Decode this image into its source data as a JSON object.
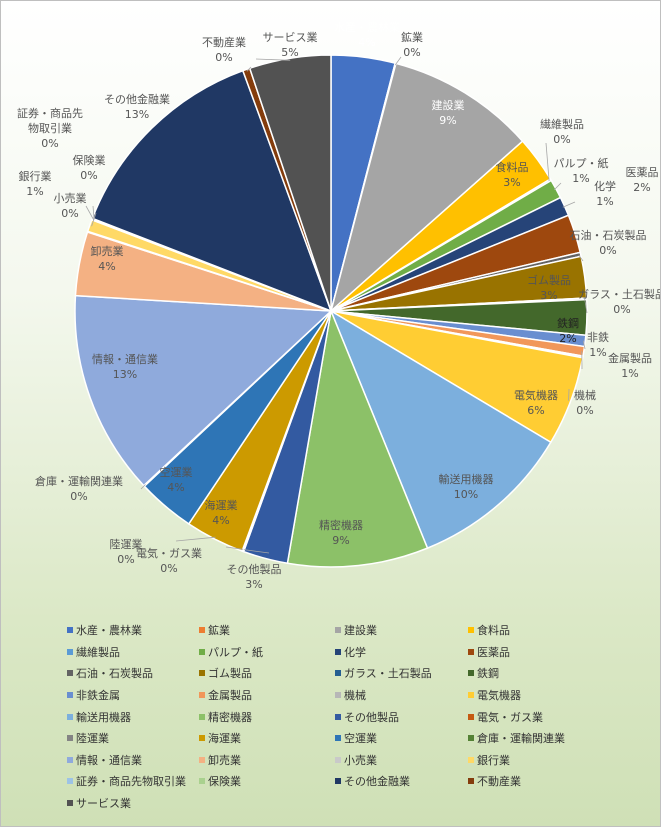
{
  "chart_data": {
    "type": "pie",
    "series": [
      {
        "name": "水産・農林業",
        "label": "水産・農林業",
        "value_label": "4%",
        "value": 4.0,
        "color": "#4472c4"
      },
      {
        "name": "鉱業",
        "label": "鉱業",
        "value_label": "0%",
        "value": 0.05,
        "color": "#ed7d31"
      },
      {
        "name": "建設業",
        "label": "建設業",
        "value_label": "9%",
        "value": 9.3,
        "color": "#a5a5a5"
      },
      {
        "name": "食料品",
        "label": "食料品",
        "value_label": "3%",
        "value": 2.9,
        "color": "#ffc000"
      },
      {
        "name": "繊維製品",
        "label": "繊維製品",
        "value_label": "0%",
        "value": 0.1,
        "color": "#5b9bd5"
      },
      {
        "name": "パルプ・紙",
        "label": "パルプ・紙",
        "value_label": "1%",
        "value": 1.2,
        "color": "#70ad47"
      },
      {
        "name": "化学",
        "label": "化学",
        "value_label": "1%",
        "value": 1.2,
        "color": "#264478"
      },
      {
        "name": "医薬品",
        "label": "医薬品",
        "value_label": "2%",
        "value": 2.4,
        "color": "#9e480e"
      },
      {
        "name": "石油・石炭製品",
        "label": "石油・石炭製品",
        "value_label": "0%",
        "value": 0.25,
        "color": "#636363"
      },
      {
        "name": "ゴム製品",
        "label": "ゴム製品",
        "value_label": "3%",
        "value": 2.6,
        "color": "#997300"
      },
      {
        "name": "ガラス・土石製品",
        "label": "ガラス・土石製品",
        "value_label": "0%",
        "value": 0.1,
        "color": "#255e91"
      },
      {
        "name": "鉄鋼",
        "label": "鉄鋼",
        "value_label": "2%",
        "value": 2.2,
        "color": "#43682b"
      },
      {
        "name": "非鉄金属",
        "label": "非鉄",
        "value_label": "1%",
        "value": 0.7,
        "color": "#698ed0"
      },
      {
        "name": "金属製品",
        "label": "金属製品",
        "value_label": "1%",
        "value": 0.6,
        "color": "#f1975a"
      },
      {
        "name": "機械",
        "label": "機械",
        "value_label": "0%",
        "value": 0.1,
        "color": "#b7b7b7"
      },
      {
        "name": "電気機器",
        "label": "電気機器",
        "value_label": "6%",
        "value": 5.6,
        "color": "#ffcd33"
      },
      {
        "name": "輸送用機器",
        "label": "輸送用機器",
        "value_label": "10%",
        "value": 10.2,
        "color": "#7cafdd"
      },
      {
        "name": "精密機器",
        "label": "精密機器",
        "value_label": "9%",
        "value": 8.8,
        "color": "#8cc168"
      },
      {
        "name": "その他製品",
        "label": "その他製品",
        "value_label": "3%",
        "value": 2.8,
        "color": "#335aa1"
      },
      {
        "name": "電気・ガス業",
        "label": "電気・ガス業",
        "value_label": "0%",
        "value": 0.05,
        "color": "#c55a11"
      },
      {
        "name": "陸運業",
        "label": "陸運業",
        "value_label": "0%",
        "value": 0.05,
        "color": "#848484"
      },
      {
        "name": "海運業",
        "label": "海運業",
        "value_label": "4%",
        "value": 3.7,
        "color": "#cc9a00"
      },
      {
        "name": "空運業",
        "label": "空運業",
        "value_label": "4%",
        "value": 3.6,
        "color": "#2e75b6"
      },
      {
        "name": "倉庫・運輸関連業",
        "label": "倉庫・運輸関連業",
        "value_label": "0%",
        "value": 0.05,
        "color": "#548235"
      },
      {
        "name": "情報・通信業",
        "label": "情報・通信業",
        "value_label": "13%",
        "value": 12.8,
        "color": "#8faadc"
      },
      {
        "name": "卸売業",
        "label": "卸売業",
        "value_label": "4%",
        "value": 4.0,
        "color": "#f4b183"
      },
      {
        "name": "小売業",
        "label": "小売業",
        "value_label": "0%",
        "value": 0.05,
        "color": "#c9c9c9"
      },
      {
        "name": "銀行業",
        "label": "銀行業",
        "value_label": "1%",
        "value": 0.75,
        "color": "#ffd966"
      },
      {
        "name": "証券・商品先物取引業",
        "label": "証券・商品先\n物取引業",
        "value_label": "0%",
        "value": 0.05,
        "color": "#9dc3e6"
      },
      {
        "name": "保険業",
        "label": "保険業",
        "value_label": "0%",
        "value": 0.05,
        "color": "#a9d18e"
      },
      {
        "name": "その他金融業",
        "label": "その他金融業",
        "value_label": "13%",
        "value": 13.4,
        "color": "#203864"
      },
      {
        "name": "不動産業",
        "label": "不動産業",
        "value_label": "0%",
        "value": 0.45,
        "color": "#843c0c"
      },
      {
        "name": "サービス業",
        "label": "サービス業",
        "value_label": "5%",
        "value": 5.1,
        "color": "#525252"
      }
    ],
    "legend_position": "bottom"
  }
}
